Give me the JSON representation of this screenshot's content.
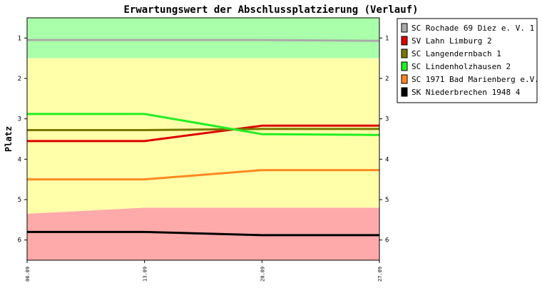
{
  "chart_data": {
    "type": "line",
    "title": "Erwartungswert der Abschlussplatzierung (Verlauf)",
    "ylabel": "Platz",
    "xlabel": "",
    "x": [
      "06.09",
      "13.09",
      "20.09",
      "27.09"
    ],
    "y_ticks": [
      1,
      2,
      3,
      4,
      5,
      6
    ],
    "ylim": [
      0.5,
      6.5
    ],
    "y_inverted": true,
    "legend_position": "right",
    "bands": [
      {
        "color": "#aaffaa",
        "top": [
          0.5,
          0.5,
          0.5,
          0.5
        ],
        "bottom": [
          1.5,
          1.5,
          1.5,
          1.5
        ]
      },
      {
        "color": "#ffffaa",
        "top": [
          1.5,
          1.5,
          1.5,
          1.5
        ],
        "bottom": [
          5.35,
          5.2,
          5.2,
          5.2
        ]
      },
      {
        "color": "#ffaaaa",
        "top": [
          5.35,
          5.2,
          5.2,
          5.2
        ],
        "bottom": [
          6.5,
          6.5,
          6.5,
          6.5
        ]
      }
    ],
    "series": [
      {
        "name": "SC Rochade 69 Diez e. V. 1",
        "color": "#aaaaaa",
        "values": [
          1.05,
          1.05,
          1.05,
          1.07
        ]
      },
      {
        "name": "SV Lahn Limburg 2",
        "color": "#dd0000",
        "values": [
          3.55,
          3.55,
          3.17,
          3.17
        ]
      },
      {
        "name": "SC Langendernbach 1",
        "color": "#777700",
        "values": [
          3.28,
          3.28,
          3.25,
          3.25
        ]
      },
      {
        "name": "SC Lindenholzhausen 2",
        "color": "#22ee22",
        "values": [
          2.88,
          2.88,
          3.38,
          3.4
        ]
      },
      {
        "name": "SC 1971 Bad Marienberg e.V. 1",
        "color": "#ff8822",
        "values": [
          4.5,
          4.5,
          4.27,
          4.27
        ]
      },
      {
        "name": "SK Niederbrechen 1948 4",
        "color": "#000000",
        "values": [
          5.8,
          5.8,
          5.88,
          5.88
        ]
      }
    ]
  }
}
